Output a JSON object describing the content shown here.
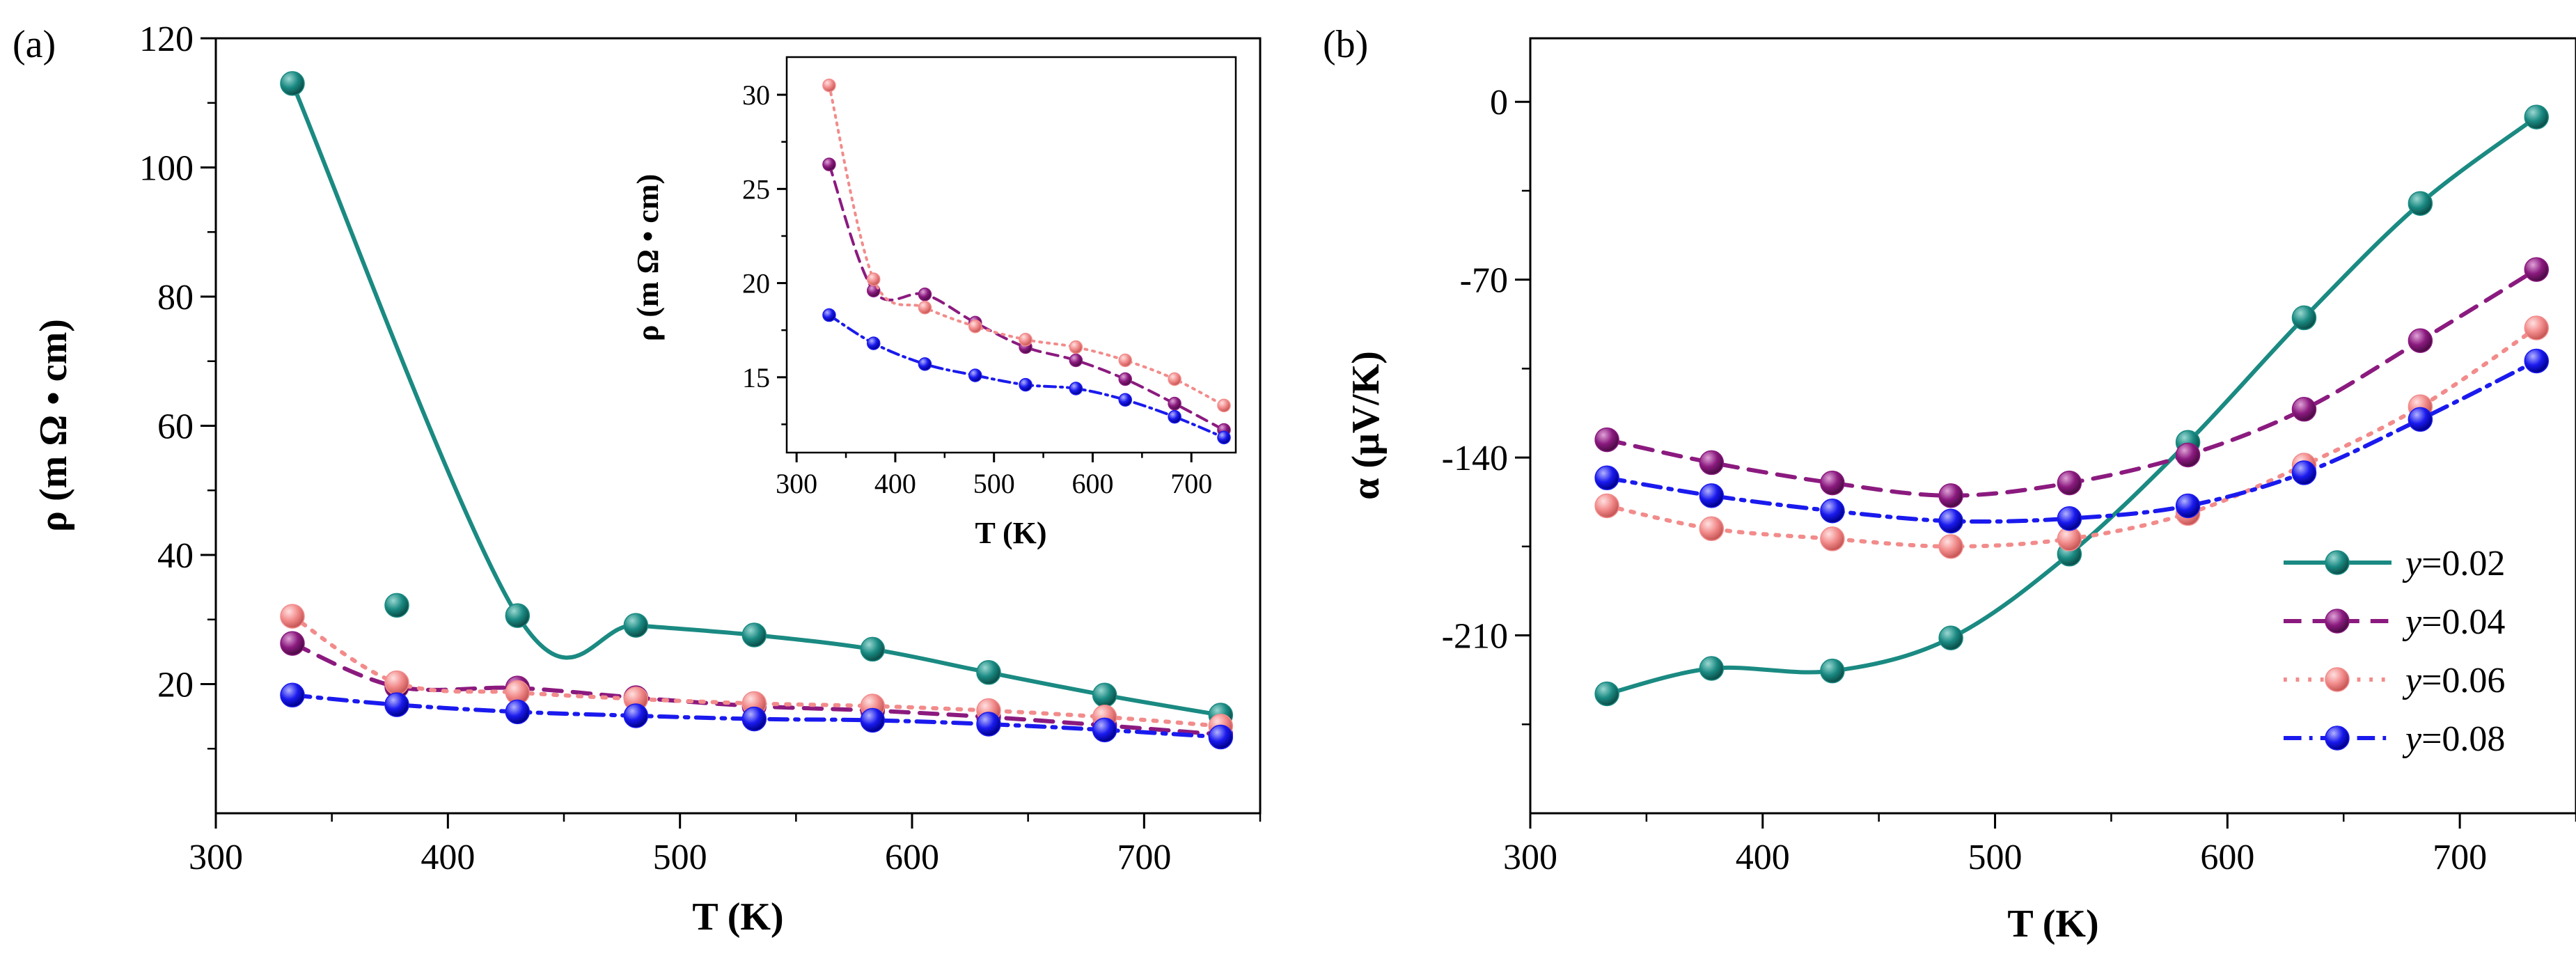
{
  "chart_data": [
    {
      "panel": "(a)",
      "type": "line",
      "xlabel": "T (K)",
      "ylabel": "ρ (m Ω • cm)",
      "xlim": [
        300,
        750
      ],
      "ylim": [
        0,
        120
      ],
      "xticks": [
        300,
        400,
        500,
        600,
        700
      ],
      "yticks": [
        20,
        40,
        60,
        80,
        100,
        120
      ],
      "x": [
        333,
        378,
        430,
        481,
        532,
        583,
        633,
        683,
        733
      ],
      "series": [
        {
          "name": "y=0.02",
          "color": "#1a8a82",
          "dash": "solid",
          "values": [
            113,
            32.2,
            30.6,
            29.1,
            27.6,
            25.4,
            21.8,
            18.3,
            15.2
          ]
        },
        {
          "name": "y=0.04",
          "color": "#8b1a7f",
          "dash": "dash",
          "values": [
            26.3,
            19.6,
            19.4,
            17.9,
            16.6,
            15.9,
            14.9,
            13.6,
            12.2
          ]
        },
        {
          "name": "y=0.06",
          "color": "#f28b8b",
          "dash": "dot",
          "values": [
            30.5,
            20.2,
            18.7,
            17.7,
            17.0,
            16.6,
            15.9,
            14.9,
            13.5
          ]
        },
        {
          "name": "y=0.08",
          "color": "#1a1aee",
          "dash": "dashdot",
          "values": [
            18.3,
            16.8,
            15.7,
            15.1,
            14.6,
            14.4,
            13.8,
            12.9,
            11.8
          ]
        }
      ],
      "inset": {
        "xlabel": "T (K)",
        "ylabel": "ρ (m Ω • cm)",
        "xlim": [
          290,
          745
        ],
        "ylim": [
          11,
          32
        ],
        "xticks": [
          300,
          400,
          500,
          600,
          700
        ],
        "yticks": [
          15,
          20,
          25,
          30
        ]
      }
    },
    {
      "panel": "(b)",
      "type": "line",
      "xlabel": "T (K)",
      "ylabel": "α (μV/K)",
      "xlim": [
        300,
        750
      ],
      "ylim": [
        -280,
        25
      ],
      "xticks": [
        300,
        400,
        500,
        600,
        700
      ],
      "yticks": [
        0,
        -70,
        -140,
        -210
      ],
      "x": [
        333,
        378,
        430,
        481,
        532,
        583,
        633,
        683,
        733
      ],
      "series": [
        {
          "name": "y=0.02",
          "color": "#1a8a82",
          "dash": "solid",
          "values": [
            -233,
            -223,
            -224,
            -211,
            -178,
            -134,
            -85,
            -40,
            -6
          ]
        },
        {
          "name": "y=0.04",
          "color": "#8b1a7f",
          "dash": "dash",
          "values": [
            -133,
            -142,
            -150,
            -155,
            -150,
            -139,
            -121,
            -94,
            -66
          ]
        },
        {
          "name": "y=0.06",
          "color": "#f28b8b",
          "dash": "dot",
          "values": [
            -159,
            -168,
            -172,
            -175,
            -172,
            -162,
            -143,
            -120,
            -89
          ]
        },
        {
          "name": "y=0.08",
          "color": "#1a1aee",
          "dash": "dashdot",
          "values": [
            -148,
            -155,
            -161,
            -165,
            -164,
            -159,
            -146,
            -125,
            -102
          ]
        }
      ],
      "legend": {
        "placement": "bottom-right",
        "entries": [
          {
            "var": "y",
            "text": "=0.02"
          },
          {
            "var": "y",
            "text": "=0.04"
          },
          {
            "var": "y",
            "text": "=0.06"
          },
          {
            "var": "y",
            "text": "=0.08"
          }
        ]
      }
    }
  ]
}
